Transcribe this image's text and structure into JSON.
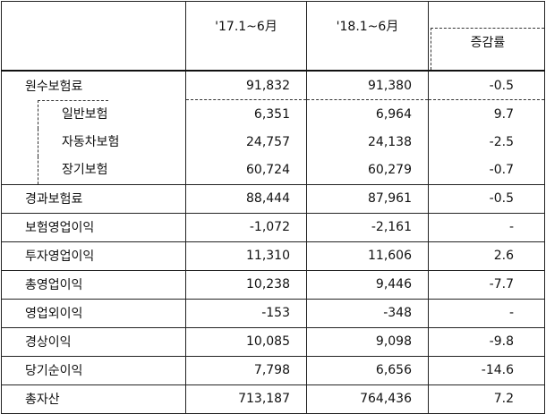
{
  "header": {
    "col_label": "",
    "col_2017": "'17.1~6月",
    "col_2018": "'18.1~6月",
    "col_rate": "증감률"
  },
  "rows": [
    {
      "label": "원수보험료",
      "v2017": "91,832",
      "v2018": "91,380",
      "rate": "-0.5"
    },
    {
      "label": "일반보험",
      "v2017": "6,351",
      "v2018": "6,964",
      "rate": "9.7"
    },
    {
      "label": "자동차보험",
      "v2017": "24,757",
      "v2018": "24,138",
      "rate": "-2.5"
    },
    {
      "label": "장기보험",
      "v2017": "60,724",
      "v2018": "60,279",
      "rate": "-0.7"
    },
    {
      "label": "경과보험료",
      "v2017": "88,444",
      "v2018": "87,961",
      "rate": "-0.5"
    },
    {
      "label": "보험영업이익",
      "v2017": "-1,072",
      "v2018": "-2,161",
      "rate": "-"
    },
    {
      "label": "투자영업이익",
      "v2017": "11,310",
      "v2018": "11,606",
      "rate": "2.6"
    },
    {
      "label": "총영업이익",
      "v2017": "10,238",
      "v2018": "9,446",
      "rate": "-7.7"
    },
    {
      "label": "영업외이익",
      "v2017": "-153",
      "v2018": "-348",
      "rate": "-"
    },
    {
      "label": "경상이익",
      "v2017": "10,085",
      "v2018": "9,098",
      "rate": "-9.8"
    },
    {
      "label": "당기순이익",
      "v2017": "7,798",
      "v2018": "6,656",
      "rate": "-14.6"
    },
    {
      "label": "총자산",
      "v2017": "713,187",
      "v2018": "764,436",
      "rate": "7.2"
    }
  ]
}
